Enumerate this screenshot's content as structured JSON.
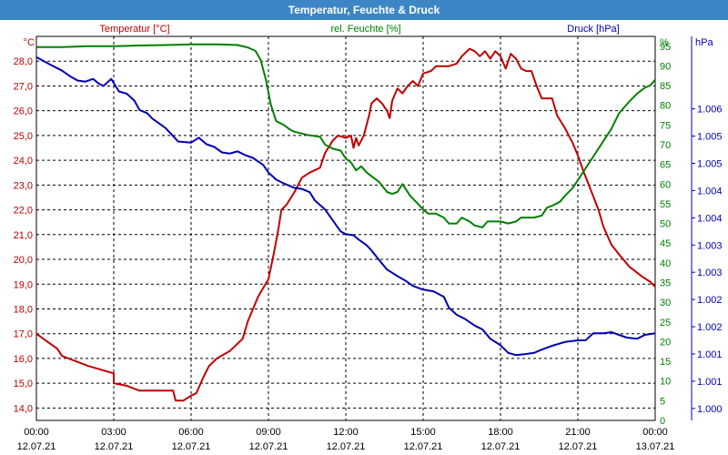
{
  "window": {
    "title": "Temperatur, Feuchte & Druck"
  },
  "legend": {
    "temp": "Temperatur [°C]",
    "hum": "rel. Feuchte [%]",
    "press": "Druck [hPa]"
  },
  "chart_data": {
    "type": "line",
    "title": "Temperatur, Feuchte & Druck",
    "colors": {
      "temp": "#c00000",
      "hum": "#008000",
      "press": "#0000b4"
    },
    "x": {
      "unit": "hours since 12.07.21 00:00",
      "range": [
        0,
        24
      ],
      "ticks": [
        {
          "h": 0,
          "time": "00:00",
          "date": "12.07.21"
        },
        {
          "h": 3,
          "time": "03:00",
          "date": "12.07.21"
        },
        {
          "h": 6,
          "time": "06:00",
          "date": "12.07.21"
        },
        {
          "h": 9,
          "time": "09:00",
          "date": "12.07.21"
        },
        {
          "h": 12,
          "time": "12:00",
          "date": "12.07.21"
        },
        {
          "h": 15,
          "time": "15:00",
          "date": "12.07.21"
        },
        {
          "h": 18,
          "time": "18:00",
          "date": "12.07.21"
        },
        {
          "h": 21,
          "time": "21:00",
          "date": "12.07.21"
        },
        {
          "h": 24,
          "time": "00:00",
          "date": "13.07.21"
        }
      ]
    },
    "y_temp": {
      "unit": "°C",
      "range": [
        13.5,
        29.0
      ],
      "ticks": [
        "14,0",
        "15,0",
        "16,0",
        "17,0",
        "18,0",
        "19,0",
        "20,0",
        "21,0",
        "22,0",
        "23,0",
        "24,0",
        "25,0",
        "26,0",
        "27,0",
        "28,0"
      ]
    },
    "y_hum": {
      "unit": "%",
      "range": [
        0,
        97.5
      ],
      "ticks": [
        "0",
        "5",
        "10",
        "15",
        "20",
        "25",
        "30",
        "35",
        "40",
        "45",
        "50",
        "55",
        "60",
        "65",
        "70",
        "75",
        "80",
        "85",
        "90",
        "95"
      ]
    },
    "y_press": {
      "unit": "hPa",
      "range": [
        999.78,
        1006.83
      ],
      "ticks": [
        "1.000",
        "1.001",
        "1.001",
        "1.002",
        "1.002",
        "1.003",
        "1.003",
        "1.004",
        "1.004",
        "1.005",
        "1.005",
        "1.006"
      ]
    },
    "series": [
      {
        "key": "temp",
        "name": "Temperatur [°C]",
        "points": [
          [
            0,
            17.0
          ],
          [
            0.4,
            16.7
          ],
          [
            0.8,
            16.4
          ],
          [
            1.0,
            16.1
          ],
          [
            1.5,
            15.9
          ],
          [
            2.0,
            15.7
          ],
          [
            2.5,
            15.55
          ],
          [
            3.0,
            15.4
          ],
          [
            3.0,
            15.0
          ],
          [
            3.5,
            14.9
          ],
          [
            4.0,
            14.7
          ],
          [
            4.5,
            14.7
          ],
          [
            5.0,
            14.7
          ],
          [
            5.3,
            14.7
          ],
          [
            5.4,
            14.3
          ],
          [
            5.7,
            14.3
          ],
          [
            6.0,
            14.5
          ],
          [
            6.2,
            14.6
          ],
          [
            6.5,
            15.3
          ],
          [
            6.7,
            15.7
          ],
          [
            7.0,
            16.0
          ],
          [
            7.5,
            16.3
          ],
          [
            8.0,
            16.8
          ],
          [
            8.2,
            17.5
          ],
          [
            8.4,
            18.0
          ],
          [
            8.6,
            18.5
          ],
          [
            9.0,
            19.2
          ],
          [
            9.2,
            20.2
          ],
          [
            9.4,
            21.3
          ],
          [
            9.5,
            22.0
          ],
          [
            9.7,
            22.2
          ],
          [
            10.0,
            22.7
          ],
          [
            10.3,
            23.3
          ],
          [
            10.6,
            23.5
          ],
          [
            11.0,
            23.7
          ],
          [
            11.2,
            24.3
          ],
          [
            11.5,
            24.8
          ],
          [
            11.7,
            25.0
          ],
          [
            12.0,
            24.9
          ],
          [
            12.2,
            25.0
          ],
          [
            12.3,
            24.5
          ],
          [
            12.4,
            24.9
          ],
          [
            12.5,
            24.6
          ],
          [
            12.7,
            25.0
          ],
          [
            12.9,
            25.8
          ],
          [
            13.0,
            26.3
          ],
          [
            13.2,
            26.5
          ],
          [
            13.4,
            26.3
          ],
          [
            13.6,
            26.0
          ],
          [
            13.7,
            25.7
          ],
          [
            13.8,
            26.4
          ],
          [
            14.0,
            26.9
          ],
          [
            14.2,
            26.7
          ],
          [
            14.4,
            27.0
          ],
          [
            14.6,
            27.2
          ],
          [
            14.8,
            27.0
          ],
          [
            15.0,
            27.5
          ],
          [
            15.3,
            27.6
          ],
          [
            15.5,
            27.8
          ],
          [
            16.0,
            27.8
          ],
          [
            16.3,
            27.9
          ],
          [
            16.5,
            28.2
          ],
          [
            16.8,
            28.5
          ],
          [
            17.0,
            28.4
          ],
          [
            17.2,
            28.2
          ],
          [
            17.4,
            28.4
          ],
          [
            17.6,
            28.1
          ],
          [
            17.8,
            28.4
          ],
          [
            18.0,
            28.2
          ],
          [
            18.2,
            27.7
          ],
          [
            18.4,
            28.3
          ],
          [
            18.6,
            28.1
          ],
          [
            18.8,
            27.7
          ],
          [
            19.0,
            27.6
          ],
          [
            19.2,
            27.6
          ],
          [
            19.4,
            27.0
          ],
          [
            19.6,
            26.5
          ],
          [
            19.8,
            26.5
          ],
          [
            20.0,
            26.5
          ],
          [
            20.2,
            25.8
          ],
          [
            20.5,
            25.3
          ],
          [
            20.8,
            24.7
          ],
          [
            21.0,
            24.2
          ],
          [
            21.2,
            23.6
          ],
          [
            21.5,
            22.8
          ],
          [
            21.8,
            22.0
          ],
          [
            22.0,
            21.3
          ],
          [
            22.3,
            20.6
          ],
          [
            22.6,
            20.2
          ],
          [
            23.0,
            19.7
          ],
          [
            23.5,
            19.3
          ],
          [
            23.8,
            19.1
          ],
          [
            24.0,
            18.9
          ]
        ]
      },
      {
        "key": "hum",
        "name": "rel. Feuchte [%]",
        "points": [
          [
            0,
            94.8
          ],
          [
            1.0,
            94.8
          ],
          [
            2.0,
            95.0
          ],
          [
            3.0,
            95.0
          ],
          [
            4.0,
            95.2
          ],
          [
            5.0,
            95.3
          ],
          [
            6.0,
            95.5
          ],
          [
            7.0,
            95.5
          ],
          [
            7.8,
            95.3
          ],
          [
            8.2,
            94.7
          ],
          [
            8.5,
            93.8
          ],
          [
            8.7,
            91.5
          ],
          [
            8.9,
            86.5
          ],
          [
            9.1,
            80.0
          ],
          [
            9.3,
            76.0
          ],
          [
            9.6,
            75.0
          ],
          [
            9.8,
            74.0
          ],
          [
            10.0,
            73.3
          ],
          [
            10.5,
            72.5
          ],
          [
            11.0,
            72.0
          ],
          [
            11.2,
            70.0
          ],
          [
            11.5,
            69.0
          ],
          [
            11.8,
            68.5
          ],
          [
            12.0,
            66.5
          ],
          [
            12.2,
            65.5
          ],
          [
            12.4,
            63.5
          ],
          [
            12.6,
            64.5
          ],
          [
            12.8,
            63.0
          ],
          [
            13.0,
            62.0
          ],
          [
            13.3,
            60.5
          ],
          [
            13.6,
            58.0
          ],
          [
            13.8,
            57.5
          ],
          [
            14.0,
            58.0
          ],
          [
            14.2,
            60.0
          ],
          [
            14.5,
            57.0
          ],
          [
            14.8,
            55.0
          ],
          [
            15.0,
            53.5
          ],
          [
            15.2,
            52.5
          ],
          [
            15.5,
            52.5
          ],
          [
            15.8,
            51.5
          ],
          [
            16.0,
            50.0
          ],
          [
            16.3,
            50.0
          ],
          [
            16.5,
            51.5
          ],
          [
            16.8,
            50.5
          ],
          [
            17.0,
            49.5
          ],
          [
            17.3,
            49.0
          ],
          [
            17.5,
            50.5
          ],
          [
            17.8,
            50.5
          ],
          [
            18.0,
            50.5
          ],
          [
            18.3,
            50.0
          ],
          [
            18.6,
            50.5
          ],
          [
            18.8,
            51.5
          ],
          [
            19.0,
            51.5
          ],
          [
            19.3,
            51.5
          ],
          [
            19.6,
            52.0
          ],
          [
            19.8,
            54.0
          ],
          [
            20.0,
            54.5
          ],
          [
            20.3,
            55.5
          ],
          [
            20.5,
            57.0
          ],
          [
            20.8,
            59.0
          ],
          [
            21.0,
            61.0
          ],
          [
            21.3,
            64.0
          ],
          [
            21.6,
            67.0
          ],
          [
            22.0,
            71.0
          ],
          [
            22.3,
            74.0
          ],
          [
            22.6,
            78.0
          ],
          [
            23.0,
            81.0
          ],
          [
            23.3,
            83.0
          ],
          [
            23.6,
            84.5
          ],
          [
            23.8,
            85.0
          ],
          [
            24.0,
            86.5
          ]
        ]
      },
      {
        "key": "press",
        "name": "Druck [hPa]",
        "points": [
          [
            0,
            1006.45
          ],
          [
            0.5,
            1006.32
          ],
          [
            1.0,
            1006.2
          ],
          [
            1.3,
            1006.1
          ],
          [
            1.6,
            1006.02
          ],
          [
            1.9,
            1006.0
          ],
          [
            2.2,
            1006.05
          ],
          [
            2.4,
            1005.97
          ],
          [
            2.6,
            1005.92
          ],
          [
            2.9,
            1006.05
          ],
          [
            3.2,
            1005.82
          ],
          [
            3.5,
            1005.78
          ],
          [
            3.8,
            1005.65
          ],
          [
            4.0,
            1005.48
          ],
          [
            4.3,
            1005.42
          ],
          [
            4.5,
            1005.32
          ],
          [
            4.8,
            1005.22
          ],
          [
            5.0,
            1005.15
          ],
          [
            5.3,
            1005.0
          ],
          [
            5.5,
            1004.9
          ],
          [
            6.0,
            1004.88
          ],
          [
            6.3,
            1004.97
          ],
          [
            6.6,
            1004.85
          ],
          [
            6.9,
            1004.8
          ],
          [
            7.2,
            1004.7
          ],
          [
            7.5,
            1004.68
          ],
          [
            7.8,
            1004.72
          ],
          [
            8.1,
            1004.65
          ],
          [
            8.4,
            1004.6
          ],
          [
            8.8,
            1004.47
          ],
          [
            9.0,
            1004.33
          ],
          [
            9.3,
            1004.2
          ],
          [
            9.6,
            1004.13
          ],
          [
            10.0,
            1004.05
          ],
          [
            10.3,
            1004.03
          ],
          [
            10.6,
            1003.97
          ],
          [
            10.8,
            1003.82
          ],
          [
            11.2,
            1003.65
          ],
          [
            11.5,
            1003.45
          ],
          [
            11.8,
            1003.25
          ],
          [
            12.0,
            1003.2
          ],
          [
            12.3,
            1003.18
          ],
          [
            12.5,
            1003.1
          ],
          [
            12.8,
            1003.0
          ],
          [
            13.0,
            1002.9
          ],
          [
            13.3,
            1002.72
          ],
          [
            13.6,
            1002.55
          ],
          [
            14.0,
            1002.43
          ],
          [
            14.3,
            1002.35
          ],
          [
            14.6,
            1002.25
          ],
          [
            15.0,
            1002.18
          ],
          [
            15.4,
            1002.15
          ],
          [
            15.8,
            1002.05
          ],
          [
            16.0,
            1001.85
          ],
          [
            16.3,
            1001.72
          ],
          [
            16.6,
            1001.65
          ],
          [
            17.0,
            1001.52
          ],
          [
            17.3,
            1001.45
          ],
          [
            17.6,
            1001.28
          ],
          [
            18.0,
            1001.16
          ],
          [
            18.3,
            1001.02
          ],
          [
            18.6,
            1000.98
          ],
          [
            19.0,
            1001.0
          ],
          [
            19.3,
            1001.02
          ],
          [
            19.6,
            1001.08
          ],
          [
            20.0,
            1001.15
          ],
          [
            20.5,
            1001.22
          ],
          [
            21.0,
            1001.25
          ],
          [
            21.3,
            1001.25
          ],
          [
            21.6,
            1001.38
          ],
          [
            22.0,
            1001.38
          ],
          [
            22.3,
            1001.4
          ],
          [
            22.6,
            1001.35
          ],
          [
            22.9,
            1001.3
          ],
          [
            23.3,
            1001.28
          ],
          [
            23.6,
            1001.35
          ],
          [
            24.0,
            1001.38
          ]
        ]
      }
    ]
  }
}
